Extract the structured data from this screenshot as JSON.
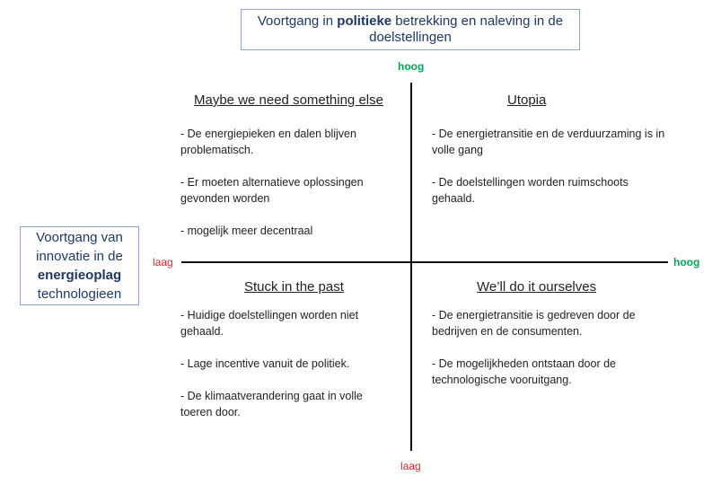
{
  "top_box": {
    "line1_a": "Voortgang in ",
    "line1_bold": "politieke",
    "line1_b": " betrekking en naleving in de",
    "line2": "doelstellingen"
  },
  "left_box": {
    "line1": "Voortgang van",
    "line2": "innovatie in de",
    "line3_bold": "energieoplag",
    "line4": "technologieen"
  },
  "axis_labels": {
    "top": "hoog",
    "bottom": "laag",
    "left": "laag",
    "right": "hoog"
  },
  "quadrants": {
    "top_left": {
      "title": "Maybe we need something else",
      "items": [
        "- De energiepieken en dalen blijven problematisch.",
        "- Er moeten alternatieve oplossingen gevonden worden",
        "- mogelijk meer decentraal"
      ]
    },
    "top_right": {
      "title": "Utopia",
      "items": [
        "- De energietransitie en de verduurzaming is in volle gang",
        "- De doelstellingen worden ruimschoots gehaald."
      ]
    },
    "bottom_left": {
      "title": "Stuck in the past",
      "items": [
        "- Huidige doelstellingen worden niet gehaald.",
        "- Lage incentive vanuit de politiek.",
        "- De klimaatverandering gaat in volle toeren door."
      ]
    },
    "bottom_right": {
      "title": "We’ll do it ourselves",
      "items": [
        "- De energietransitie is gedreven door de bedrijven en de consumenten.",
        "- De mogelijkheden ontstaan door de technologische vooruitgang."
      ]
    }
  },
  "colors": {
    "high": "#00a651",
    "low": "#e0262b",
    "box_border": "#8fa6c8",
    "box_text": "#1f3864"
  }
}
